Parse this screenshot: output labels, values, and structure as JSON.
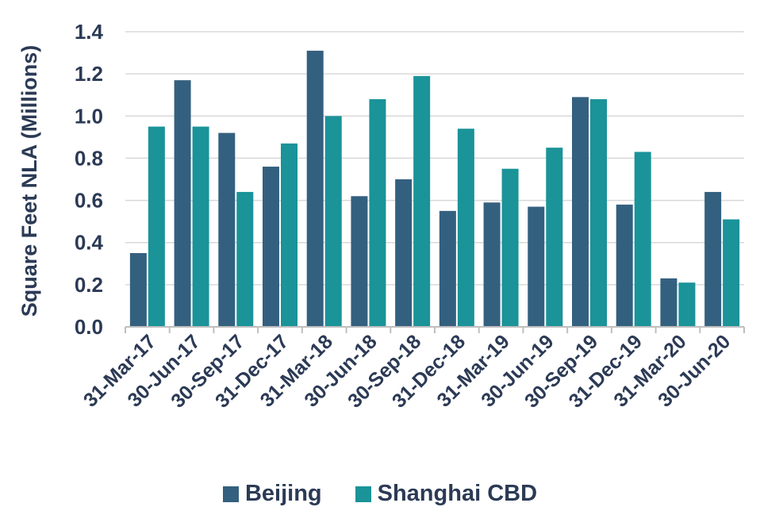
{
  "chart_data": {
    "type": "bar",
    "ylabel": "Square Feet NLA (Millions)",
    "xlabel": "",
    "ylim": [
      0,
      1.4
    ],
    "yticks": [
      "0.0",
      "0.2",
      "0.4",
      "0.6",
      "0.8",
      "1.0",
      "1.2",
      "1.4"
    ],
    "grid": true,
    "legend_position": "bottom",
    "categories": [
      "31-Mar-17",
      "30-Jun-17",
      "30-Sep-17",
      "31-Dec-17",
      "31-Mar-18",
      "30-Jun-18",
      "30-Sep-18",
      "31-Dec-18",
      "31-Mar-19",
      "30-Jun-19",
      "30-Sep-19",
      "31-Dec-19",
      "31-Mar-20",
      "30-Jun-20"
    ],
    "series": [
      {
        "name": "Beijing",
        "color": "#34607f",
        "values": [
          0.35,
          1.17,
          0.92,
          0.76,
          1.31,
          0.62,
          0.7,
          0.55,
          0.59,
          0.57,
          1.09,
          0.58,
          0.23,
          0.64
        ]
      },
      {
        "name": "Shanghai CBD",
        "color": "#1a9399",
        "values": [
          0.95,
          0.95,
          0.64,
          0.87,
          1.0,
          1.08,
          1.19,
          0.94,
          0.75,
          0.85,
          1.08,
          0.83,
          0.21,
          0.51
        ]
      }
    ]
  }
}
